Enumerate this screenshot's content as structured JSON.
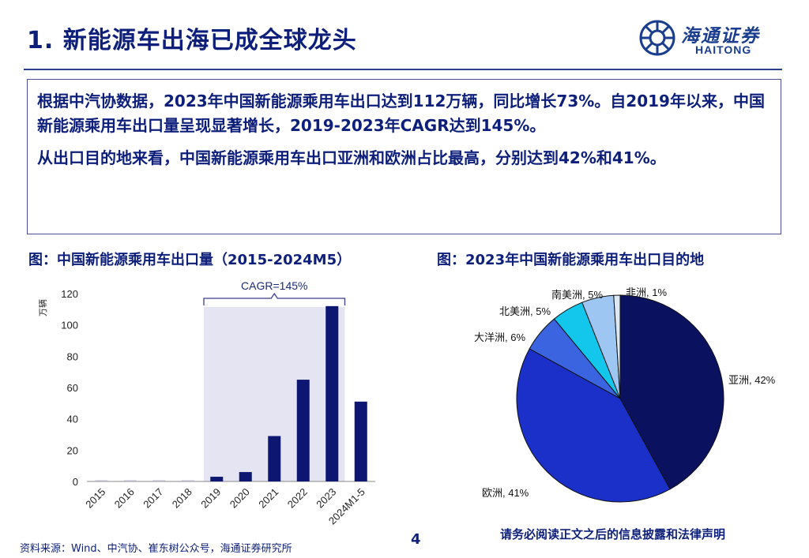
{
  "header": {
    "title": "1. 新能源车出海已成全球龙头",
    "logo_cn": "海通证券",
    "logo_en": "HAITONG"
  },
  "summary": {
    "para1": "根据中汽协数据，2023年中国新能源乘用车出口达到112万辆，同比增长73%。自2019年以来，中国新能源乘用车出口量呈现显著增长，2019-2023年CAGR达到145%。",
    "para2": "从出口目的地来看，中国新能源乘用车出口亚洲和欧洲占比最高，分别达到42%和41%。"
  },
  "figures": {
    "left_title": "图：中国新能源乘用车出口量（2015-2024M5）",
    "right_title": "图：2023年中国新能源乘用车出口目的地"
  },
  "colors": {
    "bar": "#0d1670",
    "highlight": "#e4e4f2",
    "text_dark": "#0d1f7a"
  },
  "chart_data": [
    {
      "type": "bar",
      "ylabel": "万辆",
      "ylim": [
        0,
        120
      ],
      "yticks": [
        0,
        20,
        40,
        60,
        80,
        100,
        120
      ],
      "categories": [
        "2015",
        "2016",
        "2017",
        "2018",
        "2019",
        "2020",
        "2021",
        "2022",
        "2023",
        "2024M1-5"
      ],
      "values": [
        0.3,
        0.3,
        0.4,
        0.5,
        3,
        6,
        29,
        65,
        112,
        51
      ],
      "annotation": "CAGR=145%",
      "highlight_range": [
        "2019",
        "2023"
      ]
    },
    {
      "type": "pie",
      "slices": [
        {
          "label": "亚洲",
          "value": 42,
          "pct_text": "42%",
          "color": "#0a1260"
        },
        {
          "label": "欧洲",
          "value": 41,
          "pct_text": "41%",
          "color": "#1a30c8"
        },
        {
          "label": "大洋洲",
          "value": 6,
          "pct_text": "6%",
          "color": "#3a64e0"
        },
        {
          "label": "北美洲",
          "value": 5,
          "pct_text": "5%",
          "color": "#12c6ec"
        },
        {
          "label": "南美洲",
          "value": 5,
          "pct_text": "5%",
          "color": "#9ec6f2"
        },
        {
          "label": "非洲",
          "value": 1,
          "pct_text": "1%",
          "color": "#dde8f5"
        }
      ]
    }
  ],
  "footer": {
    "source": "资料来源：Wind、中汽协、崔东树公众号，海通证券研究所",
    "page": "4",
    "disclaimer": "请务必阅读正文之后的信息披露和法律声明"
  }
}
